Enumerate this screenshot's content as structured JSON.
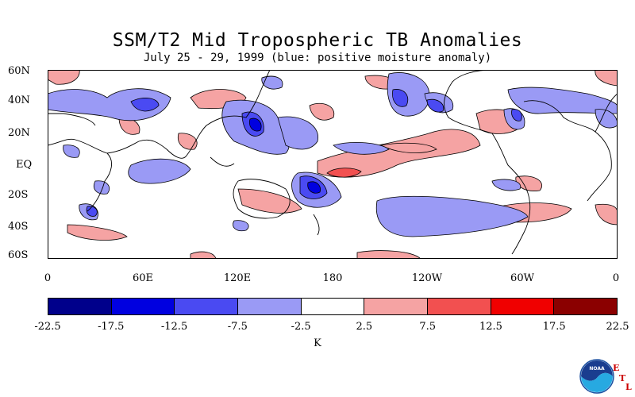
{
  "title": "SSM/T2 Mid Tropospheric TB Anomalies",
  "subtitle": "July 25 - 29, 1999 (blue: positive moisture anomaly)",
  "lat_labels": [
    "60N",
    "40N",
    "20N",
    "EQ",
    "20S",
    "40S",
    "60S"
  ],
  "lon_labels": [
    "0",
    "60E",
    "120E",
    "180",
    "120W",
    "60W",
    "0"
  ],
  "colorbar": {
    "colors": [
      "#00008b",
      "#0000e0",
      "#4a4af2",
      "#9a9af5",
      "#ffffff",
      "#f5a3a3",
      "#f25050",
      "#f00000",
      "#8b0000"
    ],
    "ticks": [
      "-22.5",
      "-17.5",
      "-12.5",
      "-7.5",
      "-2.5",
      "2.5",
      "7.5",
      "12.5",
      "17.5",
      "22.5"
    ],
    "unit": "K"
  },
  "logo": {
    "text": "NOAA",
    "letters": [
      "E",
      "T",
      "L"
    ]
  }
}
